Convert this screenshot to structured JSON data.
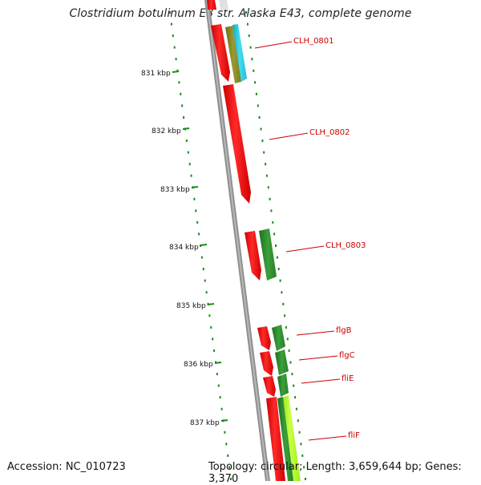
{
  "title": "Clostridium botulinum E3 str. Alaska E43, complete genome",
  "footer": {
    "accession": "Accession: NC_010723",
    "summary": "Topology: circular; Length: 3,659,644 bp; Genes: 3,370"
  },
  "colors": {
    "gene_forward": "#ff0000",
    "gene_reverse_dark": "#2e8b2e",
    "gene_reverse_light": "#aaff22",
    "gene_olive": "#8a8a2a",
    "gene_cyan": "#22ccdd",
    "backbone": "#888888",
    "tick": "#1a8a1a",
    "label": "#cc0000"
  },
  "kbp_ticks": [
    "831 kbp",
    "832 kbp",
    "833 kbp",
    "834 kbp",
    "835 kbp",
    "836 kbp",
    "837 kbp"
  ],
  "gene_labels": [
    "CLH_0801",
    "CLH_0802",
    "CLH_0803",
    "flgB",
    "flgC",
    "fliE",
    "fliF"
  ]
}
